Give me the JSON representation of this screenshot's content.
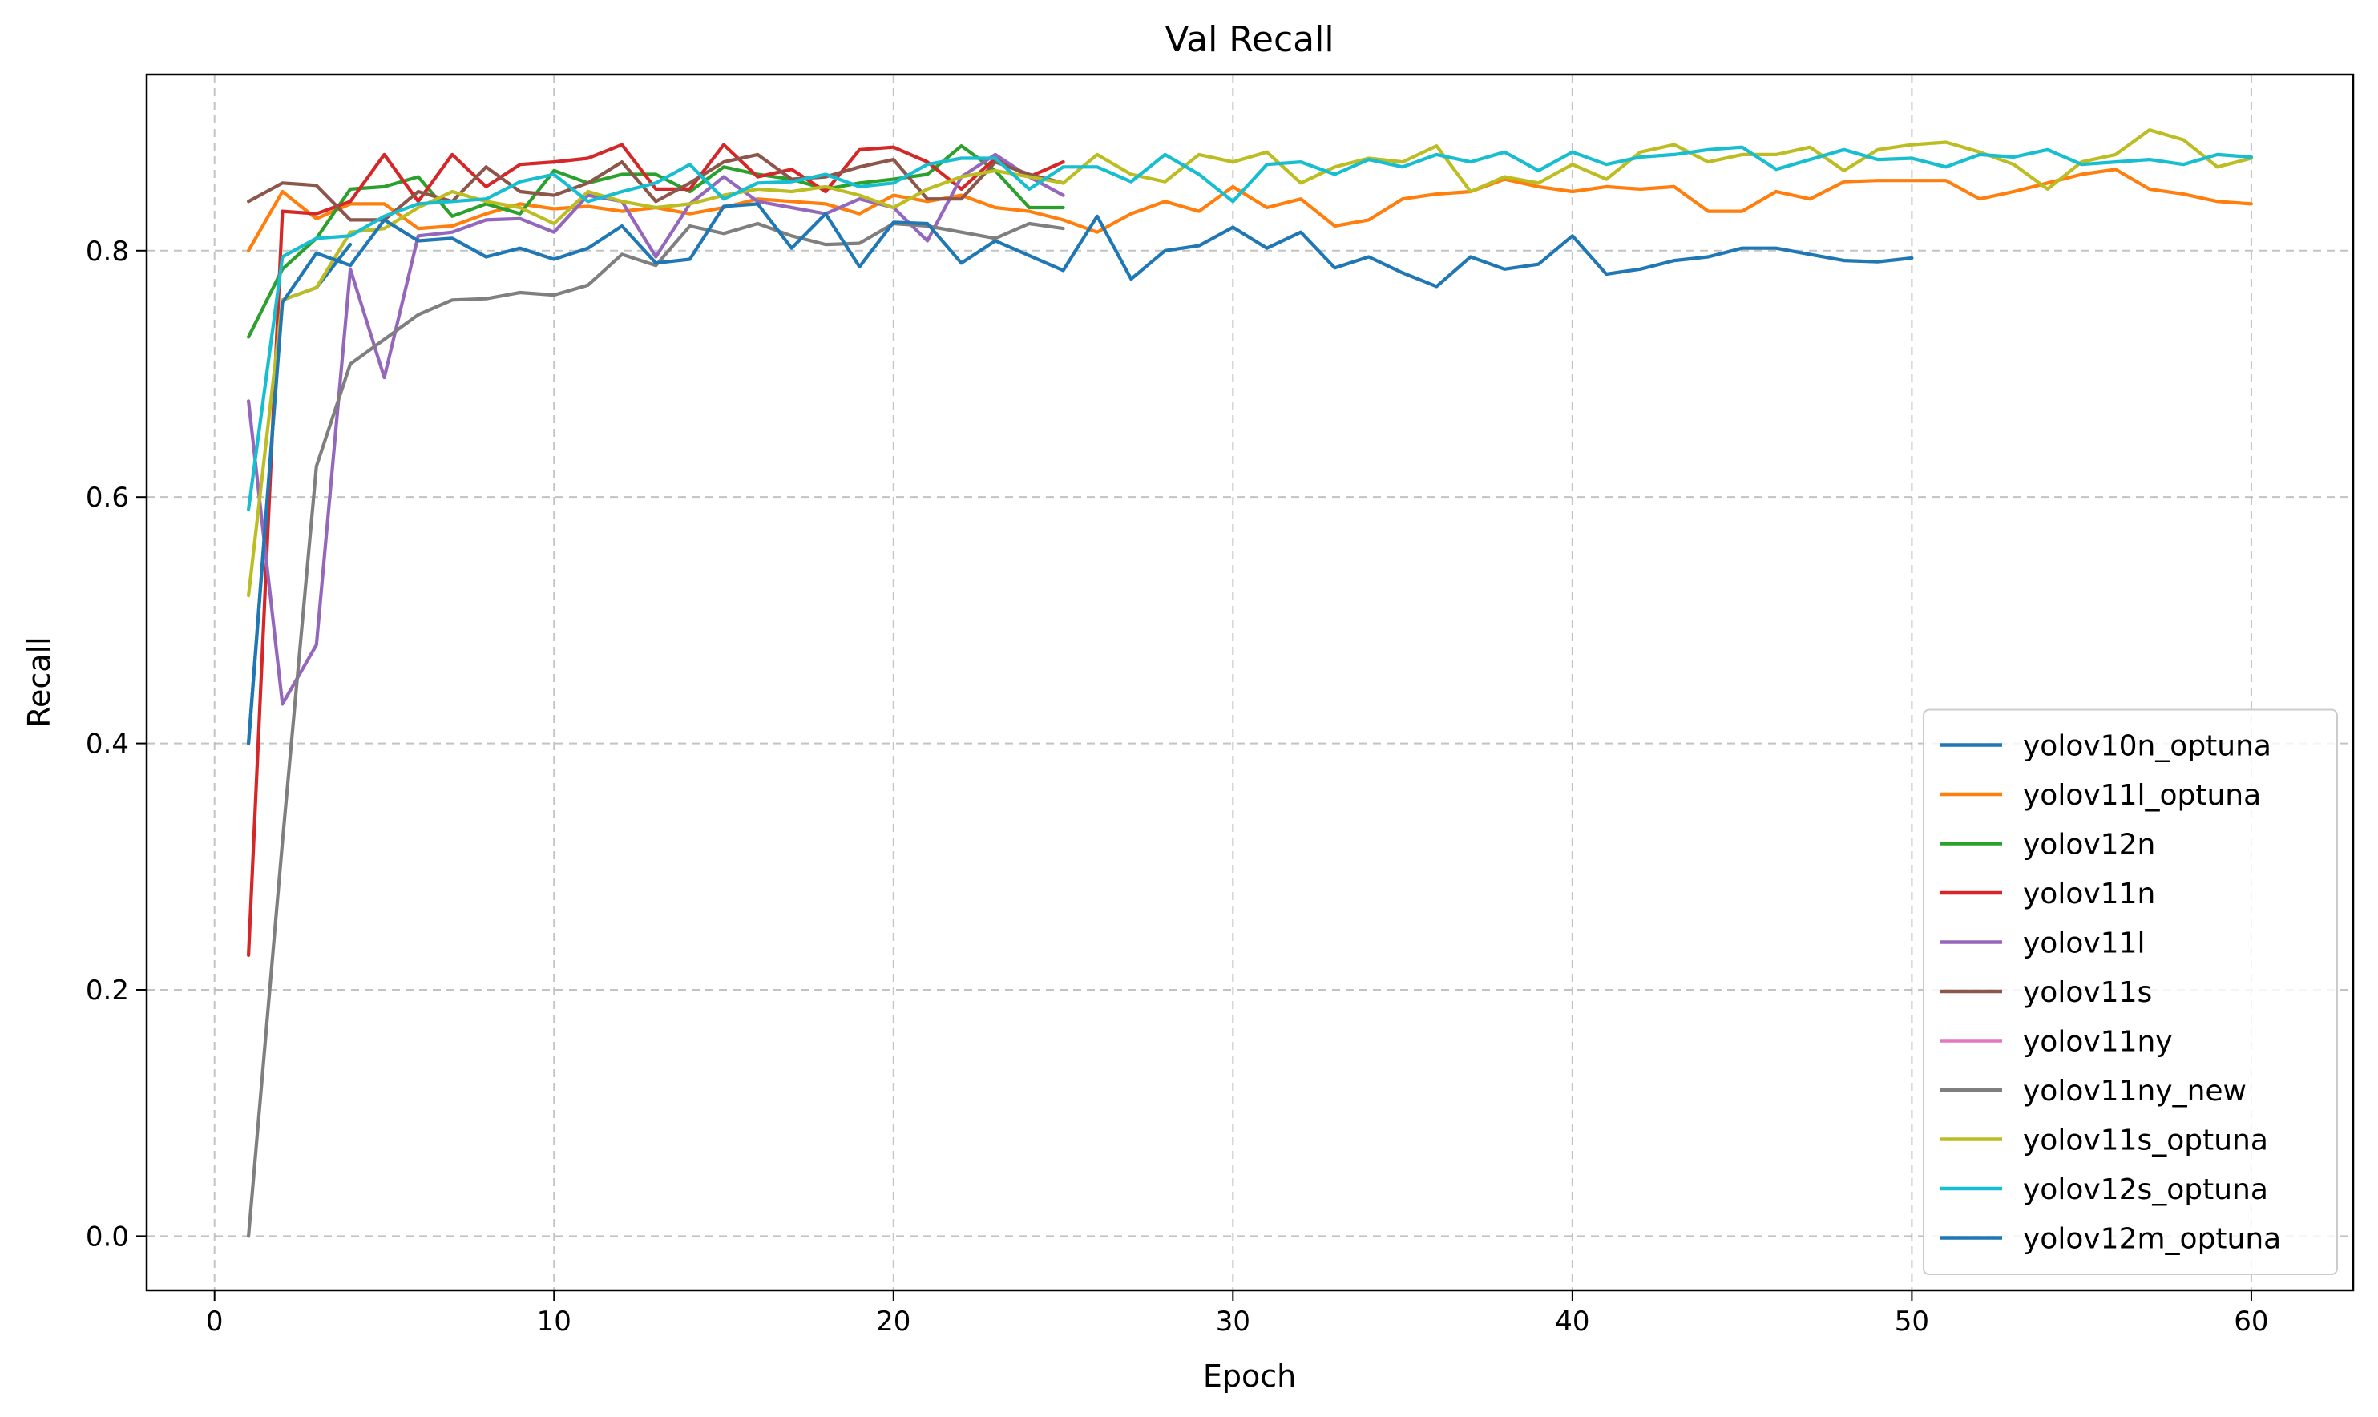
{
  "chart_data": {
    "type": "line",
    "title": "Val Recall",
    "xlabel": "Epoch",
    "ylabel": "Recall",
    "xlim": [
      -2,
      63
    ],
    "ylim": [
      -0.044,
      0.943
    ],
    "xticks": [
      0,
      10,
      20,
      30,
      40,
      50,
      60
    ],
    "xtick_labels": [
      "0",
      "10",
      "20",
      "30",
      "40",
      "50",
      "60"
    ],
    "yticks": [
      0.0,
      0.2,
      0.4,
      0.6,
      0.8
    ],
    "ytick_labels": [
      "0.0",
      "0.2",
      "0.4",
      "0.6",
      "0.8"
    ],
    "grid": true,
    "legend_position": "lower-right",
    "series": [
      {
        "name": "yolov10n_optuna",
        "color": "#1f77b4",
        "x_start": 1,
        "values": [
          0.4,
          0.76,
          0.77,
          0.805
        ]
      },
      {
        "name": "yolov11l_optuna",
        "color": "#ff7f0e",
        "x_start": 1,
        "values": [
          0.8,
          0.848,
          0.826,
          0.838,
          0.838,
          0.818,
          0.82,
          0.83,
          0.838,
          0.834,
          0.836,
          0.832,
          0.835,
          0.83,
          0.835,
          0.842,
          0.84,
          0.838,
          0.83,
          0.845,
          0.84,
          0.845,
          0.835,
          0.832,
          0.825,
          0.815,
          0.83,
          0.84,
          0.832,
          0.852,
          0.835,
          0.842,
          0.82,
          0.825,
          0.842,
          0.846,
          0.848,
          0.858,
          0.852,
          0.848,
          0.852,
          0.85,
          0.852,
          0.832,
          0.832,
          0.848,
          0.842,
          0.856,
          0.857,
          0.857,
          0.857,
          0.842,
          0.848,
          0.855,
          0.862,
          0.866,
          0.85,
          0.846,
          0.84,
          0.838
        ]
      },
      {
        "name": "yolov12n",
        "color": "#2ca02c",
        "x_start": 1,
        "values": [
          0.73,
          0.785,
          0.81,
          0.85,
          0.852,
          0.86,
          0.828,
          0.838,
          0.83,
          0.865,
          0.855,
          0.862,
          0.862,
          0.848,
          0.868,
          0.862,
          0.858,
          0.85,
          0.855,
          0.858,
          0.862,
          0.885,
          0.865,
          0.835,
          0.835
        ]
      },
      {
        "name": "yolov11n",
        "color": "#d62728",
        "x_start": 1,
        "values": [
          0.228,
          0.832,
          0.83,
          0.84,
          0.878,
          0.84,
          0.878,
          0.852,
          0.87,
          0.872,
          0.875,
          0.886,
          0.85,
          0.85,
          0.886,
          0.86,
          0.866,
          0.848,
          0.882,
          0.884,
          0.872,
          0.85,
          0.875,
          0.86,
          0.872
        ]
      },
      {
        "name": "yolov11l",
        "color": "#9467bd",
        "x_start": 1,
        "values": [
          0.678,
          0.432,
          0.48,
          0.785,
          0.697,
          0.812,
          0.815,
          0.825,
          0.826,
          0.815,
          0.845,
          0.84,
          0.795,
          0.838,
          0.86,
          0.84,
          0.835,
          0.83,
          0.842,
          0.835,
          0.808,
          0.86,
          0.878,
          0.86,
          0.845
        ]
      },
      {
        "name": "yolov11s",
        "color": "#8c564b",
        "x_start": 1,
        "values": [
          0.84,
          0.855,
          0.853,
          0.825,
          0.825,
          0.848,
          0.84,
          0.868,
          0.848,
          0.845,
          0.855,
          0.872,
          0.84,
          0.855,
          0.872,
          0.878,
          0.858,
          0.86,
          0.868,
          0.874,
          0.842,
          0.842,
          0.872,
          0.862,
          0.855
        ]
      },
      {
        "name": "yolov11ny",
        "color": "#e377c2",
        "x_start": 1,
        "values": []
      },
      {
        "name": "yolov11ny_new",
        "color": "#7f7f7f",
        "x_start": 1,
        "values": [
          0.0,
          0.32,
          0.625,
          0.708,
          0.728,
          0.748,
          0.76,
          0.761,
          0.766,
          0.764,
          0.772,
          0.797,
          0.788,
          0.82,
          0.814,
          0.822,
          0.812,
          0.805,
          0.806,
          0.822,
          0.82,
          0.815,
          0.81,
          0.822,
          0.818
        ]
      },
      {
        "name": "yolov11s_optuna",
        "color": "#bcbd22",
        "x_start": 1,
        "values": [
          0.52,
          0.76,
          0.77,
          0.815,
          0.818,
          0.835,
          0.848,
          0.84,
          0.835,
          0.822,
          0.848,
          0.84,
          0.835,
          0.838,
          0.845,
          0.85,
          0.848,
          0.852,
          0.845,
          0.835,
          0.85,
          0.86,
          0.865,
          0.86,
          0.855,
          0.878,
          0.862,
          0.856,
          0.878,
          0.872,
          0.88,
          0.855,
          0.868,
          0.875,
          0.872,
          0.885,
          0.848,
          0.86,
          0.855,
          0.87,
          0.858,
          0.88,
          0.886,
          0.872,
          0.878,
          0.878,
          0.884,
          0.865,
          0.882,
          0.886,
          0.888,
          0.88,
          0.87,
          0.85,
          0.872,
          0.878,
          0.898,
          0.89,
          0.868,
          0.875
        ]
      },
      {
        "name": "yolov12s_optuna",
        "color": "#17becf",
        "x_start": 1,
        "values": [
          0.59,
          0.795,
          0.81,
          0.812,
          0.828,
          0.838,
          0.84,
          0.842,
          0.856,
          0.862,
          0.84,
          0.848,
          0.855,
          0.87,
          0.842,
          0.855,
          0.856,
          0.862,
          0.852,
          0.855,
          0.87,
          0.875,
          0.875,
          0.85,
          0.868,
          0.868,
          0.856,
          0.878,
          0.862,
          0.84,
          0.87,
          0.872,
          0.862,
          0.874,
          0.868,
          0.878,
          0.872,
          0.88,
          0.865,
          0.88,
          0.87,
          0.876,
          0.878,
          0.882,
          0.884,
          0.866,
          0.874,
          0.882,
          0.874,
          0.875,
          0.868,
          0.878,
          0.876,
          0.882,
          0.87,
          0.872,
          0.874,
          0.87,
          0.878,
          0.876
        ]
      },
      {
        "name": "yolov12m_optuna",
        "color": "#1f77b4",
        "x_start": 1,
        "values": [
          0.4,
          0.758,
          0.798,
          0.788,
          0.825,
          0.808,
          0.81,
          0.795,
          0.802,
          0.793,
          0.802,
          0.82,
          0.79,
          0.793,
          0.836,
          0.838,
          0.802,
          0.83,
          0.787,
          0.823,
          0.822,
          0.79,
          0.808,
          0.796,
          0.784,
          0.828,
          0.777,
          0.8,
          0.804,
          0.819,
          0.802,
          0.815,
          0.786,
          0.795,
          0.782,
          0.771,
          0.795,
          0.785,
          0.789,
          0.812,
          0.781,
          0.785,
          0.792,
          0.795,
          0.802,
          0.802,
          0.797,
          0.792,
          0.791,
          0.794
        ]
      }
    ]
  }
}
